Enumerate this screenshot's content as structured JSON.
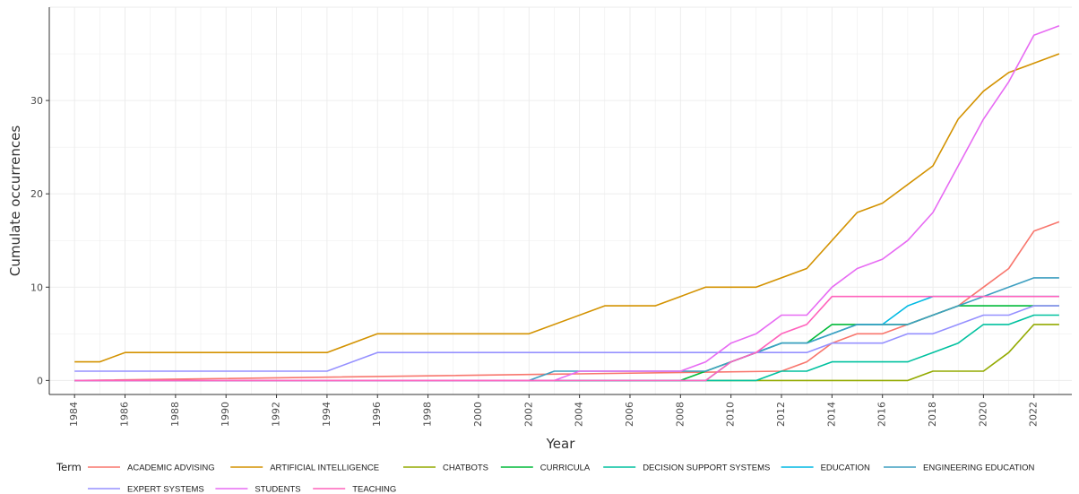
{
  "chart_data": {
    "type": "line",
    "title": "",
    "xlabel": "Year",
    "ylabel": "Cumulate occurrences",
    "xlim": [
      1983,
      2023.5
    ],
    "ylim": [
      -1.5,
      40
    ],
    "x_ticks": [
      1984,
      1986,
      1988,
      1990,
      1992,
      1994,
      1996,
      1998,
      2000,
      2002,
      2004,
      2006,
      2008,
      2010,
      2012,
      2014,
      2016,
      2018,
      2020,
      2022
    ],
    "y_ticks": [
      0,
      10,
      20,
      30
    ],
    "grid": true,
    "legend_title": "Term",
    "legend_position": "bottom",
    "series": [
      {
        "name": "ACADEMIC ADVISING",
        "color": "#F8766D",
        "x": [
          1984,
          2012,
          2013,
          2014,
          2015,
          2016,
          2017,
          2018,
          2019,
          2020,
          2021,
          2022,
          2023
        ],
        "y": [
          0,
          1,
          2,
          4,
          5,
          5,
          6,
          7,
          8,
          10,
          12,
          16,
          17
        ]
      },
      {
        "name": "ARTIFICIAL INTELLIGENCE",
        "color": "#D39200",
        "x": [
          1984,
          1985,
          1986,
          1994,
          1996,
          2002,
          2005,
          2007,
          2009,
          2011,
          2013,
          2015,
          2016,
          2018,
          2019,
          2020,
          2021,
          2022,
          2023
        ],
        "y": [
          2,
          2,
          3,
          3,
          5,
          5,
          8,
          8,
          10,
          10,
          12,
          18,
          19,
          23,
          28,
          31,
          33,
          34,
          35
        ]
      },
      {
        "name": "CHATBOTS",
        "color": "#93AA00",
        "x": [
          1984,
          2017,
          2018,
          2020,
          2021,
          2022,
          2023
        ],
        "y": [
          0,
          0,
          1,
          1,
          3,
          6,
          6
        ]
      },
      {
        "name": "CURRICULA",
        "color": "#00BA38",
        "x": [
          1984,
          2008,
          2009,
          2010,
          2011,
          2012,
          2013,
          2014,
          2015,
          2016,
          2017,
          2018,
          2019,
          2020,
          2021,
          2022,
          2023
        ],
        "y": [
          0,
          0,
          1,
          2,
          3,
          4,
          4,
          6,
          6,
          6,
          6,
          7,
          8,
          8,
          8,
          8,
          8
        ]
      },
      {
        "name": "DECISION SUPPORT SYSTEMS",
        "color": "#00C19F",
        "x": [
          1984,
          2011,
          2012,
          2013,
          2014,
          2015,
          2016,
          2017,
          2018,
          2019,
          2020,
          2021,
          2022,
          2023
        ],
        "y": [
          0,
          0,
          1,
          1,
          2,
          2,
          2,
          2,
          3,
          4,
          6,
          6,
          7,
          7
        ]
      },
      {
        "name": "EDUCATION",
        "color": "#00B9E3",
        "x": [
          1984,
          2009,
          2010,
          2011,
          2012,
          2013,
          2014,
          2015,
          2016,
          2017,
          2018,
          2019,
          2020,
          2021,
          2022,
          2023
        ],
        "y": [
          0,
          0,
          2,
          3,
          4,
          4,
          5,
          6,
          6,
          8,
          9,
          9,
          9,
          9,
          9,
          9
        ]
      },
      {
        "name": "ENGINEERING EDUCATION",
        "color": "#3E9FC1",
        "x": [
          1984,
          2002,
          2003,
          2004,
          2008,
          2009,
          2010,
          2011,
          2012,
          2013,
          2014,
          2015,
          2016,
          2017,
          2018,
          2019,
          2020,
          2021,
          2022,
          2023
        ],
        "y": [
          0,
          0,
          1,
          1,
          1,
          1,
          2,
          3,
          4,
          4,
          5,
          6,
          6,
          6,
          7,
          8,
          9,
          10,
          11,
          11
        ]
      },
      {
        "name": "EXPERT SYSTEMS",
        "color": "#9590FF",
        "x": [
          1984,
          1994,
          1996,
          2011,
          2012,
          2013,
          2014,
          2016,
          2017,
          2018,
          2019,
          2020,
          2021,
          2022,
          2023
        ],
        "y": [
          1,
          1,
          3,
          3,
          3,
          3,
          4,
          4,
          5,
          5,
          6,
          7,
          7,
          8,
          8
        ]
      },
      {
        "name": "STUDENTS",
        "color": "#E76BF3",
        "x": [
          1984,
          2003,
          2004,
          2008,
          2009,
          2010,
          2011,
          2012,
          2013,
          2014,
          2015,
          2016,
          2017,
          2018,
          2019,
          2020,
          2021,
          2022,
          2023
        ],
        "y": [
          0,
          0,
          1,
          1,
          2,
          4,
          5,
          7,
          7,
          10,
          12,
          13,
          15,
          18,
          23,
          28,
          32,
          37,
          38
        ]
      },
      {
        "name": "TEACHING",
        "color": "#FF62BC",
        "x": [
          1984,
          2009,
          2010,
          2011,
          2012,
          2013,
          2014,
          2015,
          2016,
          2017,
          2018,
          2019,
          2020,
          2021,
          2022,
          2023
        ],
        "y": [
          0,
          0,
          2,
          3,
          5,
          6,
          9,
          9,
          9,
          9,
          9,
          9,
          9,
          9,
          9,
          9
        ]
      }
    ]
  }
}
